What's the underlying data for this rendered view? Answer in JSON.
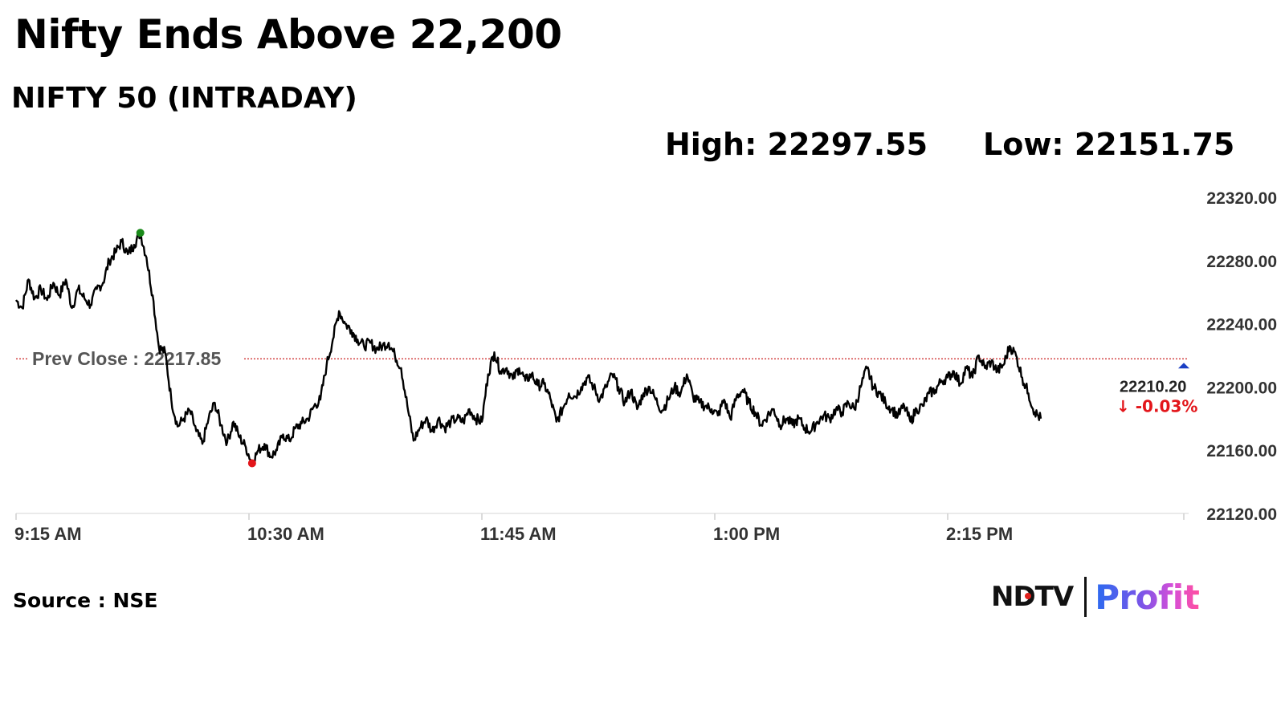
{
  "headline": "Nifty Ends Above 22,200",
  "subtitle": "NIFTY 50 (INTRADAY)",
  "stats": {
    "high": "High: 22297.55",
    "low": "Low: 22151.75"
  },
  "source": "Source : NSE",
  "brand": {
    "ndtv": "NDTV",
    "profit": "Profit"
  },
  "colors": {
    "line": "#000000",
    "prev_close": "#cc2222",
    "high_dot": "#1a8a1a",
    "low_dot": "#e3161b",
    "change_down": "#e3161b",
    "last_marker": "#1a3fc4"
  },
  "chart_data": {
    "type": "line",
    "title": "NIFTY 50 (INTRADAY)",
    "x_ticks": [
      "9:15 AM",
      "10:30 AM",
      "11:45 AM",
      "1:00 PM",
      "2:15 PM"
    ],
    "y_ticks": [
      "22320.00",
      "22280.00",
      "22240.00",
      "22200.00",
      "22160.00",
      "22120.00"
    ],
    "ylim": [
      22120,
      22320
    ],
    "xlim": [
      "9:15 AM",
      "3:30 PM"
    ],
    "prev_close": {
      "label": "Prev Close : 22217.85",
      "value": 22217.85
    },
    "high": {
      "time": "9:55 AM",
      "value": 22297.55
    },
    "low": {
      "time": "10:31 AM",
      "value": 22151.75
    },
    "last": {
      "label": "22210.20",
      "change": "-0.03%",
      "arrow": "↓",
      "time": "3:30 PM",
      "value": 22210.2
    },
    "series": [
      {
        "points": [
          [
            "9:15 AM",
            22255
          ],
          [
            "9:17 AM",
            22250
          ],
          [
            "9:19 AM",
            22268
          ],
          [
            "9:21 AM",
            22256
          ],
          [
            "9:23 AM",
            22262
          ],
          [
            "9:25 AM",
            22255
          ],
          [
            "9:27 AM",
            22266
          ],
          [
            "9:29 AM",
            22258
          ],
          [
            "9:31 AM",
            22268
          ],
          [
            "9:33 AM",
            22250
          ],
          [
            "9:35 AM",
            22262
          ],
          [
            "9:37 AM",
            22256
          ],
          [
            "9:39 AM",
            22252
          ],
          [
            "9:41 AM",
            22262
          ],
          [
            "9:43 AM",
            22266
          ],
          [
            "9:45 AM",
            22280
          ],
          [
            "9:47 AM",
            22285
          ],
          [
            "9:49 AM",
            22292
          ],
          [
            "9:51 AM",
            22284
          ],
          [
            "9:53 AM",
            22290
          ],
          [
            "9:55 AM",
            22297.55
          ],
          [
            "9:57 AM",
            22282
          ],
          [
            "9:59 AM",
            22258
          ],
          [
            "10:01 AM",
            22225
          ],
          [
            "10:03 AM",
            22222
          ],
          [
            "10:05 AM",
            22192
          ],
          [
            "10:07 AM",
            22175
          ],
          [
            "10:09 AM",
            22180
          ],
          [
            "10:11 AM",
            22185
          ],
          [
            "10:13 AM",
            22172
          ],
          [
            "10:15 AM",
            22164
          ],
          [
            "10:17 AM",
            22180
          ],
          [
            "10:19 AM",
            22190
          ],
          [
            "10:21 AM",
            22176
          ],
          [
            "10:23 AM",
            22165
          ],
          [
            "10:25 AM",
            22178
          ],
          [
            "10:27 AM",
            22168
          ],
          [
            "10:29 AM",
            22162
          ],
          [
            "10:31 AM",
            22151.75
          ],
          [
            "10:33 AM",
            22160
          ],
          [
            "10:35 AM",
            22164
          ],
          [
            "10:37 AM",
            22156
          ],
          [
            "10:39 AM",
            22160
          ],
          [
            "10:41 AM",
            22170
          ],
          [
            "10:43 AM",
            22166
          ],
          [
            "10:45 AM",
            22174
          ],
          [
            "10:47 AM",
            22177
          ],
          [
            "10:49 AM",
            22180
          ],
          [
            "10:51 AM",
            22188
          ],
          [
            "10:53 AM",
            22192
          ],
          [
            "10:55 AM",
            22214
          ],
          [
            "10:57 AM",
            22230
          ],
          [
            "10:59 AM",
            22248
          ],
          [
            "11:01 AM",
            22240
          ],
          [
            "11:03 AM",
            22236
          ],
          [
            "11:05 AM",
            22230
          ],
          [
            "11:07 AM",
            22226
          ],
          [
            "11:09 AM",
            22228
          ],
          [
            "11:11 AM",
            22224
          ],
          [
            "11:13 AM",
            22226
          ],
          [
            "11:15 AM",
            22228
          ],
          [
            "11:17 AM",
            22220
          ],
          [
            "11:19 AM",
            22212
          ],
          [
            "11:21 AM",
            22188
          ],
          [
            "11:23 AM",
            22166
          ],
          [
            "11:25 AM",
            22174
          ],
          [
            "11:27 AM",
            22180
          ],
          [
            "11:29 AM",
            22172
          ],
          [
            "11:31 AM",
            22180
          ],
          [
            "11:33 AM",
            22174
          ],
          [
            "11:35 AM",
            22178
          ],
          [
            "11:37 AM",
            22180
          ],
          [
            "11:39 AM",
            22178
          ],
          [
            "11:41 AM",
            22186
          ],
          [
            "11:43 AM",
            22180
          ],
          [
            "11:45 AM",
            22178
          ],
          [
            "11:47 AM",
            22208
          ],
          [
            "11:49 AM",
            22222
          ],
          [
            "11:51 AM",
            22210
          ],
          [
            "11:53 AM",
            22212
          ],
          [
            "11:55 AM",
            22205
          ],
          [
            "11:57 AM",
            22212
          ],
          [
            "11:59 AM",
            22204
          ],
          [
            "12:01 PM",
            22208
          ],
          [
            "12:03 PM",
            22201
          ],
          [
            "12:05 PM",
            22202
          ],
          [
            "12:07 PM",
            22193
          ],
          [
            "12:09 PM",
            22178
          ],
          [
            "12:11 PM",
            22186
          ],
          [
            "12:13 PM",
            22196
          ],
          [
            "12:15 PM",
            22194
          ],
          [
            "12:17 PM",
            22200
          ],
          [
            "12:19 PM",
            22206
          ],
          [
            "12:21 PM",
            22200
          ],
          [
            "12:23 PM",
            22192
          ],
          [
            "12:25 PM",
            22200
          ],
          [
            "12:27 PM",
            22208
          ],
          [
            "12:29 PM",
            22200
          ],
          [
            "12:31 PM",
            22190
          ],
          [
            "12:33 PM",
            22198
          ],
          [
            "12:35 PM",
            22186
          ],
          [
            "12:37 PM",
            22196
          ],
          [
            "12:39 PM",
            22200
          ],
          [
            "12:41 PM",
            22192
          ],
          [
            "12:43 PM",
            22185
          ],
          [
            "12:45 PM",
            22192
          ],
          [
            "12:47 PM",
            22200
          ],
          [
            "12:49 PM",
            22196
          ],
          [
            "12:51 PM",
            22208
          ],
          [
            "12:53 PM",
            22194
          ],
          [
            "12:55 PM",
            22190
          ],
          [
            "12:57 PM",
            22188
          ],
          [
            "12:59 PM",
            22186
          ],
          [
            "1:01 PM",
            22182
          ],
          [
            "1:03 PM",
            22192
          ],
          [
            "1:05 PM",
            22180
          ],
          [
            "1:07 PM",
            22194
          ],
          [
            "1:09 PM",
            22198
          ],
          [
            "1:11 PM",
            22190
          ],
          [
            "1:13 PM",
            22184
          ],
          [
            "1:15 PM",
            22176
          ],
          [
            "1:17 PM",
            22182
          ],
          [
            "1:19 PM",
            22186
          ],
          [
            "1:21 PM",
            22176
          ],
          [
            "1:23 PM",
            22180
          ],
          [
            "1:25 PM",
            22176
          ],
          [
            "1:27 PM",
            22180
          ],
          [
            "1:29 PM",
            22174
          ],
          [
            "1:31 PM",
            22172
          ],
          [
            "1:33 PM",
            22178
          ],
          [
            "1:35 PM",
            22182
          ],
          [
            "1:37 PM",
            22180
          ],
          [
            "1:39 PM",
            22186
          ],
          [
            "1:41 PM",
            22184
          ],
          [
            "1:43 PM",
            22190
          ],
          [
            "1:45 PM",
            22186
          ],
          [
            "1:47 PM",
            22200
          ],
          [
            "1:49 PM",
            22212
          ],
          [
            "1:51 PM",
            22200
          ],
          [
            "1:53 PM",
            22196
          ],
          [
            "1:55 PM",
            22190
          ],
          [
            "1:57 PM",
            22186
          ],
          [
            "1:59 PM",
            22182
          ],
          [
            "2:01 PM",
            22188
          ],
          [
            "2:03 PM",
            22178
          ],
          [
            "2:05 PM",
            22186
          ],
          [
            "2:07 PM",
            22188
          ],
          [
            "2:09 PM",
            22196
          ],
          [
            "2:11 PM",
            22198
          ],
          [
            "2:13 PM",
            22204
          ],
          [
            "2:15 PM",
            22206
          ],
          [
            "2:17 PM",
            22210
          ],
          [
            "2:19 PM",
            22202
          ],
          [
            "2:21 PM",
            22212
          ],
          [
            "2:23 PM",
            22206
          ],
          [
            "2:25 PM",
            22220
          ],
          [
            "2:27 PM",
            22212
          ],
          [
            "2:29 PM",
            22216
          ],
          [
            "2:31 PM",
            22210
          ],
          [
            "2:33 PM",
            22214
          ],
          [
            "2:35 PM",
            22226
          ],
          [
            "2:37 PM",
            22220
          ],
          [
            "2:39 PM",
            22206
          ],
          [
            "2:41 PM",
            22196
          ],
          [
            "2:43 PM",
            22184
          ],
          [
            "2:45 PM",
            22180
          ]
        ]
      }
    ]
  }
}
